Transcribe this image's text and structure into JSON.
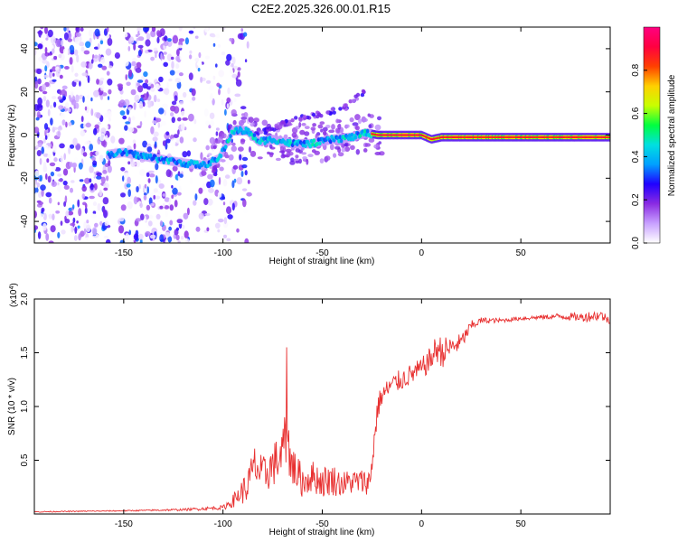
{
  "title": "C2E2.2025.326.00.01.R15",
  "chart_data": [
    {
      "type": "heatmap",
      "xlabel": "Height of straight line (km)",
      "ylabel": "Frequency (Hz)",
      "xlim": [
        -195,
        95
      ],
      "ylim": [
        -50,
        50
      ],
      "xticks": [
        -150,
        -100,
        -50,
        0,
        50
      ],
      "xtick_labels": [
        "-150",
        "-100",
        "-50",
        "0",
        "50"
      ],
      "yticks": [
        40,
        20,
        0,
        -20,
        -40
      ],
      "ytick_labels": [
        "40",
        "20",
        "0",
        "-20",
        "-40"
      ],
      "colorbar": {
        "label": "Normalized spectral amplitude",
        "range": [
          0,
          1
        ],
        "ticks": [
          0.0,
          0.2,
          0.4,
          0.6,
          0.8
        ],
        "tick_labels": [
          "0.0",
          "0.2",
          "0.4",
          "0.6",
          "0.8"
        ],
        "colors": [
          "#ffffff",
          "#c8a0ff",
          "#8a2be2",
          "#2000ff",
          "#00a0ff",
          "#00e0e0",
          "#00ff40",
          "#c8ff00",
          "#ffd000",
          "#ff4000",
          "#ff0040",
          "#ff0080"
        ]
      },
      "ridge": [
        [
          -158,
          -9
        ],
        [
          -150,
          -8
        ],
        [
          -145,
          -9
        ],
        [
          -120,
          -13
        ],
        [
          -110,
          -14
        ],
        [
          -102,
          -11
        ],
        [
          -95,
          2
        ],
        [
          -88,
          2
        ],
        [
          -82,
          -3
        ],
        [
          -75,
          -2
        ],
        [
          -65,
          -4
        ],
        [
          -55,
          -4
        ],
        [
          -45,
          -2
        ],
        [
          -35,
          -1
        ],
        [
          -28,
          1
        ],
        [
          -22,
          0
        ],
        [
          -15,
          0
        ],
        [
          0,
          0
        ],
        [
          5,
          -2
        ],
        [
          10,
          -1
        ],
        [
          20,
          -1
        ],
        [
          40,
          -1
        ],
        [
          60,
          -1
        ],
        [
          80,
          -1
        ],
        [
          95,
          -1
        ]
      ],
      "upper_branch": [
        [
          -85,
          0
        ],
        [
          -75,
          3
        ],
        [
          -65,
          7
        ],
        [
          -55,
          9
        ],
        [
          -45,
          11
        ],
        [
          -38,
          13
        ],
        [
          -32,
          18
        ],
        [
          -29,
          20
        ]
      ]
    },
    {
      "type": "line",
      "xlabel": "Height of straight line (km)",
      "ylabel": "SNR (10 * v/v)",
      "multiplier_label": "(x10",
      "multiplier_exp": "4",
      "multiplier_close": ")",
      "xlim": [
        -195,
        95
      ],
      "ylim": [
        0,
        2.0
      ],
      "xticks": [
        -150,
        -100,
        -50,
        0,
        50
      ],
      "xtick_labels": [
        "-150",
        "-100",
        "-50",
        "0",
        "50"
      ],
      "yticks": [
        0.5,
        1.0,
        1.5,
        2.0
      ],
      "ytick_labels": [
        "0.5",
        "1.0",
        "1.5",
        "2.0"
      ],
      "series": [
        {
          "name": "SNR",
          "color": "#e83030",
          "x": [
            -195,
            -150,
            -120,
            -100,
            -95,
            -92,
            -88,
            -84,
            -80,
            -75,
            -70,
            -68,
            -65,
            -60,
            -55,
            -50,
            -45,
            -40,
            -35,
            -30,
            -26,
            -24,
            -22,
            -20,
            -15,
            -10,
            -5,
            0,
            5,
            8,
            10,
            15,
            20,
            25,
            30,
            40,
            50,
            60,
            70,
            80,
            85,
            90,
            95
          ],
          "y": [
            0.02,
            0.03,
            0.04,
            0.06,
            0.12,
            0.18,
            0.25,
            0.45,
            0.35,
            0.45,
            0.55,
            0.7,
            0.45,
            0.3,
            0.35,
            0.3,
            0.32,
            0.28,
            0.3,
            0.3,
            0.3,
            0.65,
            1.0,
            1.1,
            1.2,
            1.25,
            1.3,
            1.35,
            1.45,
            1.55,
            1.5,
            1.55,
            1.6,
            1.75,
            1.8,
            1.8,
            1.82,
            1.83,
            1.84,
            1.83,
            1.84,
            1.85,
            1.8
          ],
          "noise": [
            0.005,
            0.005,
            0.01,
            0.02,
            0.06,
            0.1,
            0.15,
            0.2,
            0.18,
            0.2,
            0.25,
            0.3,
            0.2,
            0.15,
            0.15,
            0.15,
            0.15,
            0.12,
            0.12,
            0.12,
            0.12,
            0.15,
            0.12,
            0.1,
            0.1,
            0.1,
            0.1,
            0.1,
            0.12,
            0.15,
            0.15,
            0.1,
            0.08,
            0.05,
            0.03,
            0.02,
            0.02,
            0.02,
            0.03,
            0.04,
            0.05,
            0.05,
            0.04
          ]
        }
      ]
    }
  ]
}
